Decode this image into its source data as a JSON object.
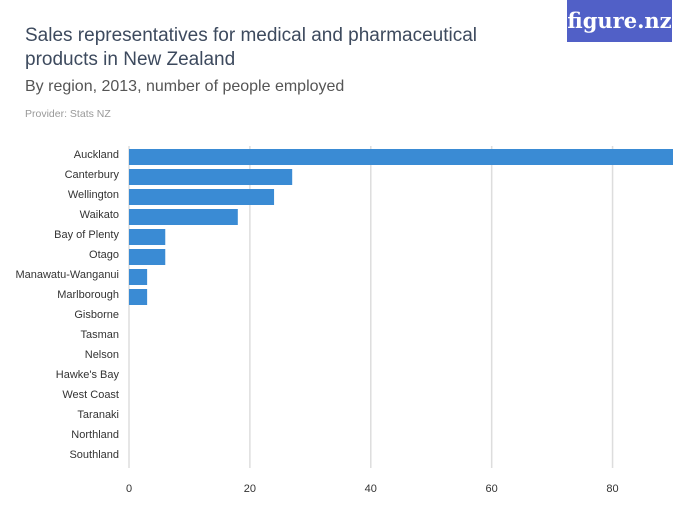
{
  "title": "Sales representatives for medical and pharmaceutical products in New Zealand",
  "subtitle": "By region, 2013, number of people employed",
  "provider": "Provider: Stats NZ",
  "logo": "figure.nz",
  "colors": {
    "bar": "#3a8bd4",
    "logo_bg": "#5160c7",
    "grid": "#dddddd"
  },
  "chart_data": {
    "type": "bar",
    "orientation": "horizontal",
    "categories": [
      "Auckland",
      "Canterbury",
      "Wellington",
      "Waikato",
      "Bay of Plenty",
      "Otago",
      "Manawatu-Wanganui",
      "Marlborough",
      "Gisborne",
      "Tasman",
      "Nelson",
      "Hawke's Bay",
      "West Coast",
      "Taranaki",
      "Northland",
      "Southland"
    ],
    "values": [
      90,
      27,
      24,
      18,
      6,
      6,
      3,
      3,
      0,
      0,
      0,
      0,
      0,
      0,
      0,
      0
    ],
    "xlim": [
      0,
      90
    ],
    "xticks": [
      0,
      20,
      40,
      60,
      80
    ],
    "grid": true
  }
}
